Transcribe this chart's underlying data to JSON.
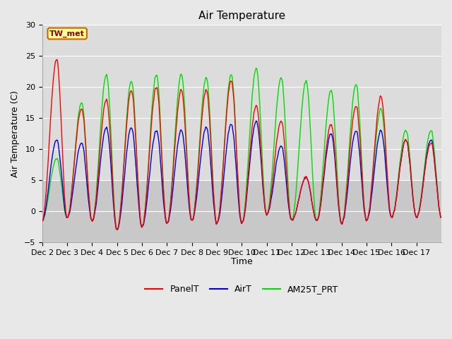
{
  "title": "Air Temperature",
  "ylabel": "Air Temperature (C)",
  "xlabel": "Time",
  "ylim": [
    -5,
    30
  ],
  "yticks": [
    -5,
    0,
    5,
    10,
    15,
    20,
    25,
    30
  ],
  "xtick_labels": [
    "Dec 2",
    "Dec 3",
    "Dec 4",
    "Dec 5",
    "Dec 6",
    "Dec 7",
    "Dec 8",
    "Dec 9",
    "Dec 10",
    "Dec 11",
    "Dec 12",
    "Dec 13",
    "Dec 14",
    "Dec 15",
    "Dec 16",
    "Dec 17"
  ],
  "station_label": "TW_met",
  "line_colors": {
    "PanelT": "#ff0000",
    "AirT": "#0000dd",
    "AM25T_PRT": "#00dd00"
  },
  "background_color": "#e8e8e8",
  "upper_band_color": "#e0e0e0",
  "lower_band_color": "#d0d0d0",
  "title_fontsize": 11,
  "label_fontsize": 9,
  "tick_fontsize": 8
}
